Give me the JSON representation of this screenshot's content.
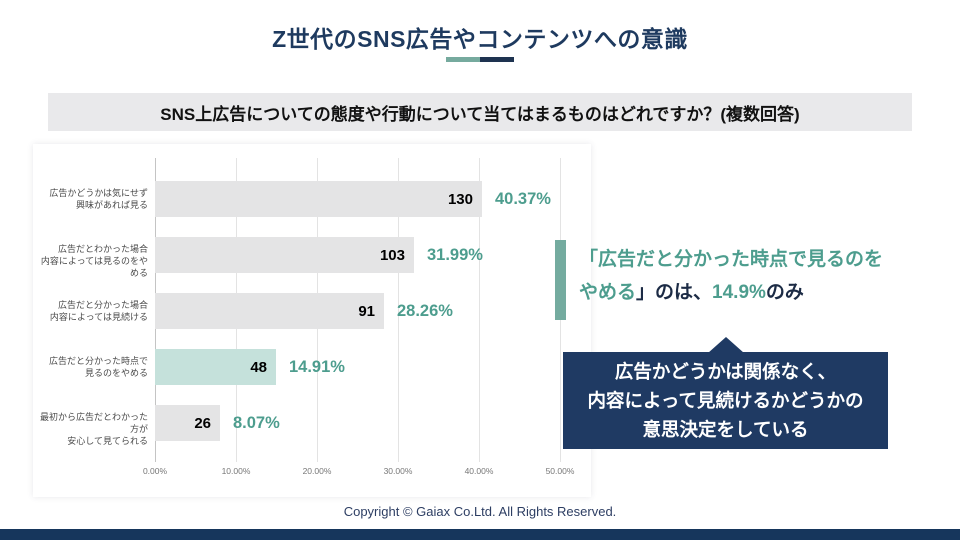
{
  "page": {
    "title": "Z世代のSNS広告やコンテンツへの意識",
    "question": "SNS上広告についての態度や行動について当てはまるものはどれですか？(複数回答)",
    "footer": "Copyright © Gaiax Co.Ltd. All Rights Reserved."
  },
  "colors": {
    "navy": "#1e3a5f",
    "teal_text": "#4d9d8e",
    "teal_bar_fill": "#c5e1db",
    "teal_accent": "#74ab9f",
    "gray_bar_fill": "#e4e4e5",
    "callout_box_bg": "#1f3a63",
    "bottom_band": "#16365c"
  },
  "chart_data": {
    "type": "bar",
    "orientation": "horizontal",
    "title": "",
    "xlabel": "",
    "ylabel": "",
    "xlim": [
      0,
      50
    ],
    "grid": true,
    "x_ticks": [
      "0.00%",
      "10.00%",
      "20.00%",
      "30.00%",
      "40.00%",
      "50.00%"
    ],
    "categories": [
      [
        "広告かどうかは気にせず",
        "興味があれば見る"
      ],
      [
        "広告だとわかった場合",
        "内容によっては見るのをやめる"
      ],
      [
        "広告だと分かった場合",
        "内容によっては見続ける"
      ],
      [
        "広告だと分かった時点で",
        "見るのをやめる"
      ],
      [
        "最初から広告だとわかった方が",
        "安心して見てられる"
      ]
    ],
    "counts": [
      130,
      103,
      91,
      48,
      26
    ],
    "percents": [
      40.37,
      31.99,
      28.26,
      14.91,
      8.07
    ],
    "percent_labels": [
      "40.37%",
      "31.99%",
      "28.26%",
      "14.91%",
      "8.07%"
    ],
    "highlight_index": 3
  },
  "callouts": {
    "quote": {
      "line1_teal": "「広告だと分かった時点で見るのを",
      "line2_teal": "やめる",
      "line2_dark1": "」のは、",
      "line2_highlight": "14.9%",
      "line2_dark2": "のみ"
    },
    "box": {
      "line1": "広告かどうかは関係なく、",
      "line2": "内容によって見続けるかどうかの",
      "line3": "意思決定をしている"
    }
  }
}
